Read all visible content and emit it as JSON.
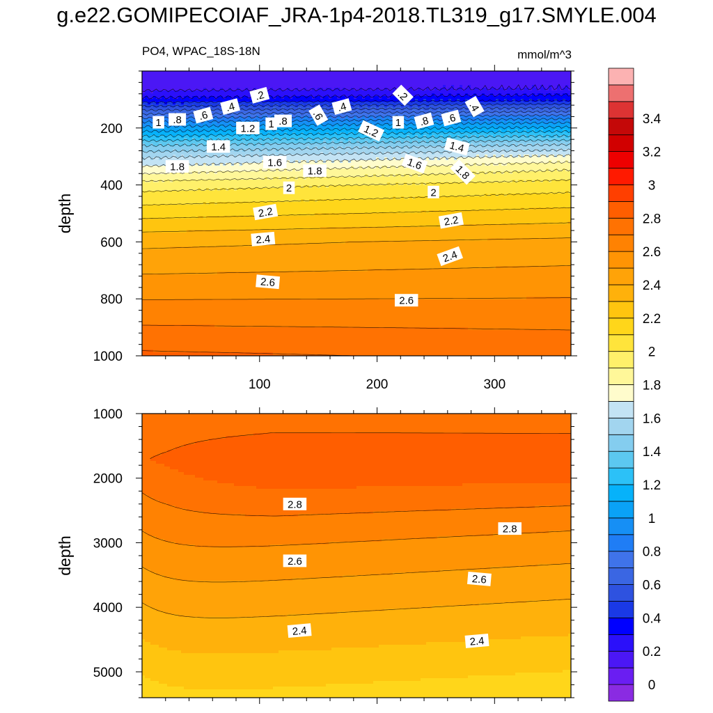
{
  "title": "g.e22.GOMIPECOIAF_JRA-1p4-2018.TL319_g17.SMYLE.004",
  "left_subtitle": "PO4, WPAC_18S-18N",
  "right_subtitle": "mmol/m^3",
  "colors": {
    "levels": [
      -0.1,
      0,
      0.1,
      0.2,
      0.3,
      0.4,
      0.5,
      0.6,
      0.7,
      0.8,
      0.9,
      1.0,
      1.1,
      1.2,
      1.3,
      1.4,
      1.5,
      1.6,
      1.7,
      1.8,
      1.9,
      2.0,
      2.1,
      2.2,
      2.3,
      2.4,
      2.5,
      2.6,
      2.7,
      2.8,
      2.9,
      3.0,
      3.1,
      3.2,
      3.3,
      3.4,
      3.5,
      3.6
    ],
    "fills": [
      "#8a2be2",
      "#6a1ef2",
      "#4b17f5",
      "#2b10fa",
      "#0000ff",
      "#1a39e6",
      "#2e52e0",
      "#3a66e3",
      "#3f73ea",
      "#1f7df5",
      "#168ff5",
      "#0aa2f7",
      "#06b2fa",
      "#2cc1f7",
      "#5cc8f0",
      "#84cdef",
      "#a2d5ef",
      "#c3e3f4",
      "#fffccc",
      "#fff799",
      "#fff06a",
      "#ffe43b",
      "#ffd61a",
      "#ffc50f",
      "#ffb10b",
      "#ffa308",
      "#ff9404",
      "#ff8202",
      "#ff7202",
      "#ff5e00",
      "#ff3f00",
      "#ff1a00",
      "#ee0000",
      "#d10000",
      "#c40808",
      "#dd3333",
      "#ed7070",
      "#fcb2b2"
    ]
  },
  "chart_data": [
    {
      "type": "contour",
      "panel": "upper",
      "xlabel": "",
      "ylabel": "depth",
      "xlim": [
        0,
        365
      ],
      "ylim": [
        0,
        1000
      ],
      "y_inverted": true,
      "xticks": [
        100,
        200,
        300
      ],
      "yticks": [
        200,
        400,
        600,
        800,
        1000
      ],
      "profile_depths": [
        0,
        60,
        100,
        140,
        180,
        220,
        260,
        300,
        340,
        400,
        450,
        500,
        550,
        600,
        650,
        700,
        800,
        900,
        1000
      ],
      "profile_values": [
        0.15,
        0.18,
        0.35,
        0.65,
        0.95,
        1.2,
        1.45,
        1.65,
        1.8,
        2.0,
        2.1,
        2.2,
        2.3,
        2.4,
        2.45,
        2.5,
        2.6,
        2.7,
        2.8
      ],
      "slope_per_x": [
        [
          0,
          0
        ],
        [
          340,
          0.08
        ],
        [
          400,
          0.05
        ],
        [
          1000,
          -0.02
        ]
      ],
      "contour_labels": [
        {
          "text": ".2",
          "x": 100,
          "y": 85,
          "rot": -15
        },
        {
          "text": ".2",
          "x": 222,
          "y": 85,
          "rot": 45
        },
        {
          "text": ".4",
          "x": 75,
          "y": 125,
          "rot": -15
        },
        {
          "text": ".4",
          "x": 170,
          "y": 125,
          "rot": -15
        },
        {
          "text": ".4",
          "x": 283,
          "y": 125,
          "rot": 60
        },
        {
          "text": ".6",
          "x": 52,
          "y": 155,
          "rot": -15
        },
        {
          "text": ".6",
          "x": 150,
          "y": 155,
          "rot": 60
        },
        {
          "text": ".6",
          "x": 263,
          "y": 165,
          "rot": -15
        },
        {
          "text": ".8",
          "x": 30,
          "y": 170,
          "rot": 0
        },
        {
          "text": ".8",
          "x": 120,
          "y": 175,
          "rot": 0
        },
        {
          "text": ".8",
          "x": 240,
          "y": 175,
          "rot": -15
        },
        {
          "text": "1",
          "x": 14,
          "y": 180,
          "rot": 0
        },
        {
          "text": "1",
          "x": 110,
          "y": 185,
          "rot": 0
        },
        {
          "text": "1",
          "x": 218,
          "y": 180,
          "rot": 0
        },
        {
          "text": "1.2",
          "x": 90,
          "y": 200,
          "rot": 0
        },
        {
          "text": "1.2",
          "x": 195,
          "y": 210,
          "rot": 25
        },
        {
          "text": "1.4",
          "x": 65,
          "y": 265,
          "rot": 0
        },
        {
          "text": "1.4",
          "x": 268,
          "y": 265,
          "rot": 15
        },
        {
          "text": "1.6",
          "x": 113,
          "y": 320,
          "rot": 0
        },
        {
          "text": "1.6",
          "x": 232,
          "y": 325,
          "rot": 20
        },
        {
          "text": "1.8",
          "x": 30,
          "y": 335,
          "rot": 0
        },
        {
          "text": "1.8",
          "x": 147,
          "y": 350,
          "rot": 0
        },
        {
          "text": "1.8",
          "x": 273,
          "y": 355,
          "rot": 45
        },
        {
          "text": "2",
          "x": 125,
          "y": 410,
          "rot": 0
        },
        {
          "text": "2",
          "x": 248,
          "y": 425,
          "rot": 0
        },
        {
          "text": "2.2",
          "x": 105,
          "y": 495,
          "rot": -10
        },
        {
          "text": "2.2",
          "x": 263,
          "y": 525,
          "rot": -10
        },
        {
          "text": "2.4",
          "x": 103,
          "y": 590,
          "rot": -5
        },
        {
          "text": "2.4",
          "x": 262,
          "y": 650,
          "rot": -20
        },
        {
          "text": "2.6",
          "x": 107,
          "y": 740,
          "rot": 5
        },
        {
          "text": "2.6",
          "x": 225,
          "y": 805,
          "rot": 0
        }
      ]
    },
    {
      "type": "contour",
      "panel": "lower",
      "xlabel": "",
      "ylabel": "depth",
      "xlim": [
        0,
        365
      ],
      "ylim": [
        1000,
        5400
      ],
      "y_inverted": true,
      "xticks": [
        100,
        200,
        300
      ],
      "yticks": [
        1000,
        2000,
        3000,
        4000,
        5000
      ],
      "contour_labels": [
        {
          "text": "2.8",
          "x": 130,
          "y": 2400,
          "rot": 0
        },
        {
          "text": "2.8",
          "x": 313,
          "y": 2780,
          "rot": 0
        },
        {
          "text": "2.6",
          "x": 130,
          "y": 3280,
          "rot": 0
        },
        {
          "text": "2.6",
          "x": 287,
          "y": 3560,
          "rot": 5
        },
        {
          "text": "2.4",
          "x": 134,
          "y": 4360,
          "rot": -5
        },
        {
          "text": "2.4",
          "x": 285,
          "y": 4520,
          "rot": -5
        }
      ]
    }
  ],
  "colorbar": {
    "labels": [
      "3.4",
      "3.2",
      "3",
      "2.8",
      "2.6",
      "2.4",
      "2.2",
      "2",
      "1.8",
      "1.6",
      "1.4",
      "1.2",
      "1",
      "0.8",
      "0.6",
      "0.4",
      "0.2",
      "0"
    ],
    "label_values": [
      3.4,
      3.2,
      3.0,
      2.8,
      2.6,
      2.4,
      2.2,
      2.0,
      1.8,
      1.6,
      1.4,
      1.2,
      1.0,
      0.8,
      0.6,
      0.4,
      0.2,
      0.0
    ]
  }
}
